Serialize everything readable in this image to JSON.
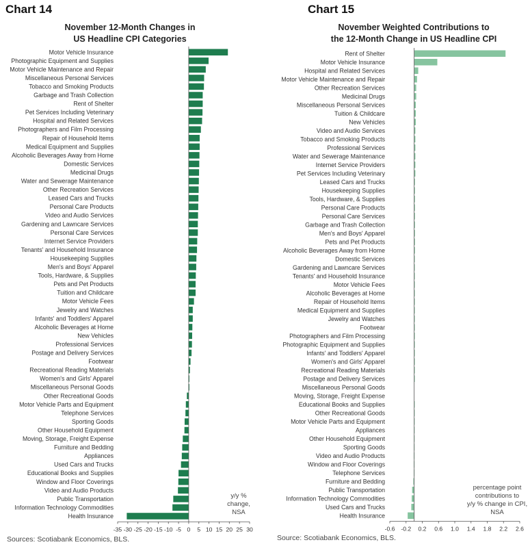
{
  "chart14": {
    "number": "Chart 14",
    "title_line1": "November 12-Month Changes in",
    "title_line2": "US Headline CPI Categories",
    "source": "Sources: Scotiabank Economics, BLS.",
    "note": [
      "y/y %",
      "change,",
      "NSA"
    ]
  },
  "chart15": {
    "number": "Chart 15",
    "title_line1": "November Weighted Contributions to",
    "title_line2": "the 12-Month Change in US Headline CPI",
    "source": "Source: Scotiabank Economics, BLS.",
    "note": [
      "percentage point",
      "contributions to",
      "y/y % change in CPI,",
      "NSA"
    ]
  },
  "chart_data": [
    {
      "id": "chart14",
      "type": "bar",
      "orientation": "horizontal",
      "title": "November 12-Month Changes in US Headline CPI Categories",
      "color": "#1e7d4f",
      "xlim": [
        -35,
        30
      ],
      "ticks": [
        -35,
        -30,
        -25,
        -20,
        -15,
        -10,
        -5,
        0,
        5,
        10,
        15,
        20,
        25,
        30
      ],
      "tick_labels": [
        "-35",
        "-30",
        "-25",
        "-20",
        "-15",
        "-10",
        "-5",
        "0",
        "5",
        "10",
        "15",
        "20",
        "25",
        "30"
      ],
      "categories": [
        "Motor Vehicle Insurance",
        "Photographic Equipment and Supplies",
        "Motor Vehicle Maintenance and Repair",
        "Miscellaneous Personal Services",
        "Tobacco and Smoking Products",
        "Garbage and Trash Collection",
        "Rent of Shelter",
        "Pet Services Including Veterinary",
        "Hospital and Related Services",
        "Photographers and Film Processing",
        "Repair of Household Items",
        "Medical Equipment and Supplies",
        "Alcoholic Beverages Away from Home",
        "Domestic Services",
        "Medicinal Drugs",
        "Water and Sewerage Maintenance",
        "Other Recreation Services",
        "Leased Cars and Trucks",
        "Personal Care Products",
        "Video and Audio Services",
        "Gardening and Lawncare Services",
        "Personal Care Services",
        "Internet Service Providers",
        "Tenants' and Household Insurance",
        "Housekeeping Supplies",
        "Men's and Boys' Apparel",
        "Tools, Hardware, & Supplies",
        "Pets and Pet Products",
        "Tuition and Childcare",
        "Motor Vehicle Fees",
        "Jewelry and Watches",
        "Infants' and Toddlers' Apparel",
        "Alcoholic Beverages at Home",
        "New Vehicles",
        "Professional Services",
        "Postage and Delivery Services",
        "Footwear",
        "Recreational Reading Materials",
        "Women's and Girls' Apparel",
        "Miscellaneous Personal Goods",
        "Other Recreational Goods",
        "Motor Vehicle Parts and Equipment",
        "Telephone Services",
        "Sporting Goods",
        "Other Household Equipment",
        "Moving, Storage, Freight Expense",
        "Furniture and Bedding",
        "Appliances",
        "Used Cars and Trucks",
        "Educational Books and Supplies",
        "Window and Floor Coverings",
        "Video and Audio Products",
        "Public Transportation",
        "Information Technology Commodities",
        "Health Insurance"
      ],
      "values": [
        19.3,
        9.8,
        8.4,
        7.6,
        7.5,
        6.9,
        6.9,
        6.8,
        6.6,
        6.0,
        5.4,
        5.4,
        5.3,
        5.2,
        5.1,
        5.0,
        4.9,
        4.8,
        4.7,
        4.6,
        4.5,
        4.5,
        4.2,
        4.1,
        3.8,
        3.7,
        3.5,
        3.4,
        3.4,
        2.6,
        2.0,
        2.0,
        1.8,
        1.7,
        1.6,
        1.4,
        0.9,
        0.6,
        0.3,
        0.2,
        -0.9,
        -1.4,
        -1.6,
        -2.0,
        -2.1,
        -2.9,
        -3.2,
        -3.4,
        -3.8,
        -5.0,
        -5.1,
        -5.3,
        -7.6,
        -8.0,
        -30.5
      ]
    },
    {
      "id": "chart15",
      "type": "bar",
      "orientation": "horizontal",
      "title": "November Weighted Contributions to the 12-Month Change in US Headline CPI",
      "color": "#86c49f",
      "xlim": [
        -0.6,
        2.6
      ],
      "ticks": [
        -0.6,
        -0.2,
        0.2,
        0.6,
        1.0,
        1.4,
        1.8,
        2.2,
        2.6
      ],
      "tick_labels": [
        "-0.6",
        "-0.2",
        "0.2",
        "0.6",
        "1.0",
        "1.4",
        "1.8",
        "2.2",
        "2.6"
      ],
      "categories": [
        "Rent of Shelter",
        "Motor Vehicle Insurance",
        "Hospital and Related Services",
        "Motor Vehicle Maintenance and Repair",
        "Other Recreation Services",
        "Medicinal Drugs",
        "Miscellaneous Personal Services",
        "Tuition & Childcare",
        "New Vehicles",
        "Video and Audio Services",
        "Tobacco and Smoking Products",
        "Professional Services",
        "Water and Sewerage Maintenance",
        "Internet Service Providers",
        "Pet Services Including Veterinary",
        "Leased Cars and Trucks",
        "Housekeeping Supplies",
        "Tools, Hardware, & Supplies",
        "Personal Care Products",
        "Personal Care Services",
        "Garbage and Trash Collection",
        "Men's and Boys' Apparel",
        "Pets and Pet Products",
        "Alcoholic Beverages Away from Home",
        "Domestic Services",
        "Gardening and Lawncare Services",
        "Tenants' and Household Insurance",
        "Motor Vehicle Fees",
        "Alcoholic Beverages at Home",
        "Repair of Household Items",
        "Medical Equipment and Supplies",
        "Jewelry and Watches",
        "Footwear",
        "Photographers and Film Processing",
        "Photographic Equipment and Supplies",
        "Infants' and Toddlers' Apparel",
        "Women's and Girls' Apparel",
        "Recreational Reading Materials",
        "Postage and Delivery Services",
        "Miscellaneous Personal Goods",
        "Moving, Storage, Freight Expense",
        "Educational Books and Supplies",
        "Other Recreational Goods",
        "Motor Vehicle Parts and Equipment",
        "Appliances",
        "Other Household Equipment",
        "Sporting Goods",
        "Video and Audio Products",
        "Window and Floor Coverings",
        "Telephone Services",
        "Furniture and Bedding",
        "Public Transportation",
        "Information Technology Commodities",
        "Used Cars and Trucks",
        "Health Insurance"
      ],
      "values": [
        2.25,
        0.57,
        0.1,
        0.07,
        0.05,
        0.05,
        0.04,
        0.04,
        0.04,
        0.03,
        0.03,
        0.03,
        0.03,
        0.03,
        0.03,
        0.02,
        0.02,
        0.02,
        0.02,
        0.02,
        0.02,
        0.02,
        0.02,
        0.02,
        0.01,
        0.01,
        0.01,
        0.01,
        0.01,
        0.01,
        0.01,
        0.01,
        0.01,
        0.004,
        0.004,
        0.003,
        0.002,
        0.001,
        0.001,
        0.0,
        0.0,
        -0.002,
        -0.003,
        -0.004,
        -0.005,
        -0.006,
        -0.008,
        -0.01,
        -0.01,
        -0.01,
        -0.02,
        -0.05,
        -0.06,
        -0.07,
        -0.16
      ]
    }
  ]
}
